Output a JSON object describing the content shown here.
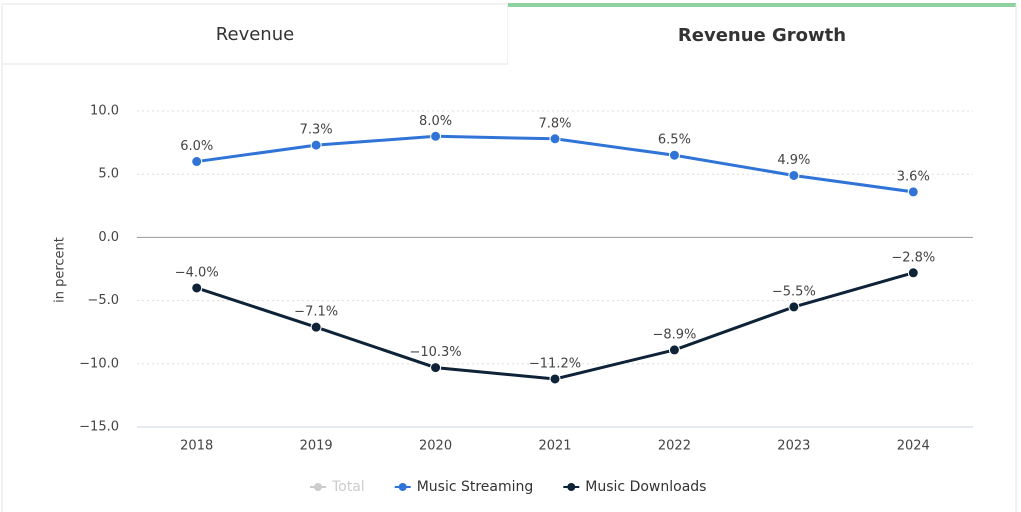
{
  "tabs": [
    {
      "label": "Revenue",
      "active": false
    },
    {
      "label": "Revenue Growth",
      "active": true
    }
  ],
  "chart_data": {
    "type": "line",
    "y_axis_label": "in percent",
    "categories": [
      "2018",
      "2019",
      "2020",
      "2021",
      "2022",
      "2023",
      "2024"
    ],
    "series": [
      {
        "name": "Total",
        "color": "#cccccc",
        "visible": false
      },
      {
        "name": "Music Streaming",
        "color": "#2f74d6",
        "visible": true,
        "values": [
          6.0,
          7.3,
          8.0,
          7.8,
          6.5,
          4.9,
          3.6
        ],
        "value_labels": [
          "6.0%",
          "7.3%",
          "8.0%",
          "7.8%",
          "6.5%",
          "4.9%",
          "3.6%"
        ]
      },
      {
        "name": "Music Downloads",
        "color": "#0e2238",
        "visible": true,
        "values": [
          -4.0,
          -7.1,
          -10.3,
          -11.2,
          -8.9,
          -5.5,
          -2.8
        ],
        "value_labels": [
          "−4.0%",
          "−7.1%",
          "−10.3%",
          "−11.2%",
          "−8.9%",
          "−5.5%",
          "−2.8%"
        ]
      }
    ],
    "ylim": [
      -15,
      10
    ],
    "yticks": [
      {
        "value": -15,
        "label": "−15.0"
      },
      {
        "value": -10,
        "label": "−10.0"
      },
      {
        "value": -5,
        "label": "−5.0"
      },
      {
        "value": 0,
        "label": "0.0"
      },
      {
        "value": 5,
        "label": "5.0"
      },
      {
        "value": 10,
        "label": "10.0"
      }
    ],
    "grid": true
  }
}
